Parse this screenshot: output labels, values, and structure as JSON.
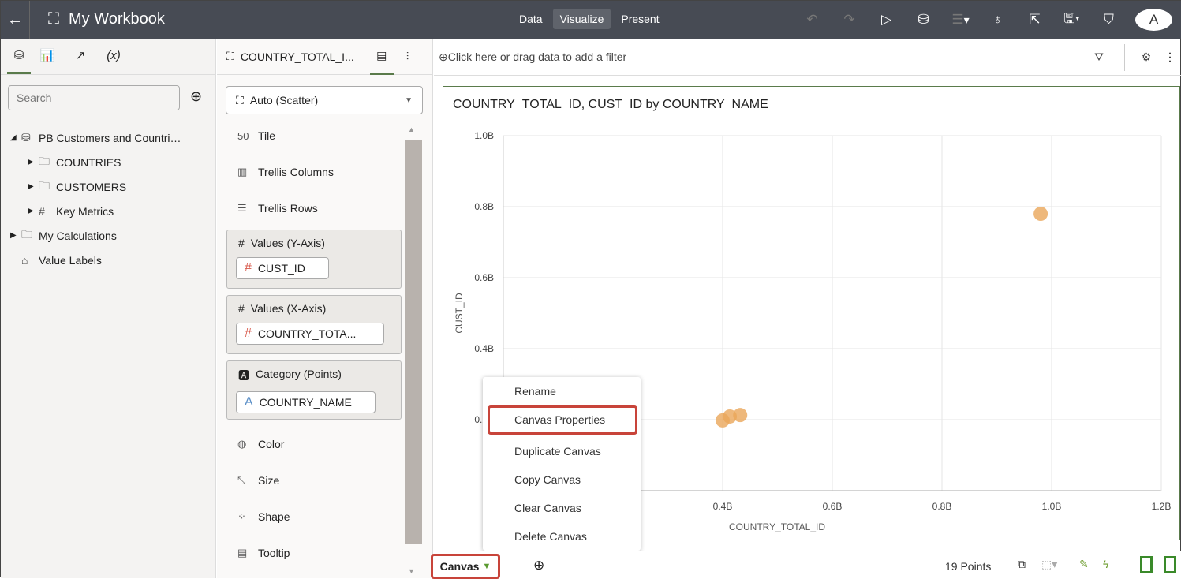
{
  "topbar": {
    "title": "My Workbook",
    "modes": [
      "Data",
      "Visualize",
      "Present"
    ],
    "active_mode": "Visualize",
    "avatar": "A"
  },
  "left": {
    "search_placeholder": "Search",
    "tree": [
      {
        "label": "PB Customers and Countri…",
        "icon": "database-icon",
        "expanded": true,
        "level": 0
      },
      {
        "label": "COUNTRIES",
        "icon": "folder-icon",
        "level": 1
      },
      {
        "label": "CUSTOMERS",
        "icon": "folder-icon",
        "level": 1
      },
      {
        "label": "Key Metrics",
        "icon": "metrics-icon",
        "level": 1
      },
      {
        "label": "My Calculations",
        "icon": "folder-icon",
        "level": 0
      },
      {
        "label": "Value Labels",
        "icon": "tag-icon",
        "level": 0,
        "noarrow": true
      }
    ]
  },
  "mid": {
    "viz_name": "COUNTRY_TOTAL_I...",
    "chart_type": "Auto (Scatter)",
    "rows": [
      "Tile",
      "Trellis Columns",
      "Trellis Rows"
    ],
    "wells": [
      {
        "label": "Values (Y-Axis)",
        "pill": "CUST_ID",
        "kind": "#"
      },
      {
        "label": "Values (X-Axis)",
        "pill": "COUNTRY_TOTA...",
        "kind": "#"
      },
      {
        "label": "Category (Points)",
        "pill": "COUNTRY_NAME",
        "kind": "A"
      }
    ],
    "rows2": [
      "Color",
      "Size",
      "Shape",
      "Tooltip"
    ]
  },
  "filter": {
    "placeholder": "Click here or drag data to add a filter"
  },
  "chart_data": {
    "type": "scatter",
    "title": "COUNTRY_TOTAL_ID, CUST_ID by COUNTRY_NAME",
    "xlabel": "COUNTRY_TOTAL_ID",
    "ylabel": "CUST_ID",
    "xlim": [
      0,
      1200000000.0
    ],
    "ylim": [
      0,
      1000000000.0
    ],
    "xticks": [
      "0.4B",
      "0.6B",
      "0.8B",
      "1.0B",
      "1.2B"
    ],
    "yticks": [
      "0",
      "0.2B",
      "0.4B",
      "0.6B",
      "0.8B",
      "1.0B"
    ],
    "grid": true,
    "point_color": "#eaa65a",
    "points": [
      {
        "x": 980000000.0,
        "y": 780000000.0
      },
      {
        "x": 400000000.0,
        "y": 198000000.0
      },
      {
        "x": 413000000.0,
        "y": 209000000.0
      },
      {
        "x": 432000000.0,
        "y": 213000000.0
      }
    ]
  },
  "menu": {
    "items": [
      "Rename",
      "Canvas Properties",
      "Duplicate Canvas",
      "Copy Canvas",
      "Clear Canvas",
      "Delete Canvas"
    ]
  },
  "bottom": {
    "canvas_tab": "Canvas",
    "points": "19 Points"
  }
}
